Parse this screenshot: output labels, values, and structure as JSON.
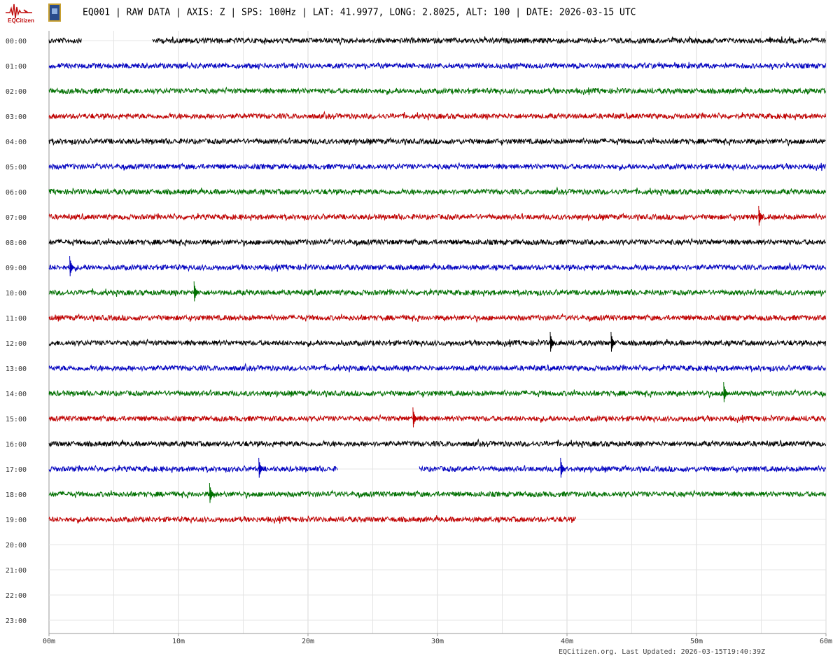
{
  "chart_data": {
    "type": "helicorder",
    "logo_text": "EQCitizen",
    "title": "EQ001 | RAW DATA | AXIS: Z | SPS: 100Hz | LAT: 41.9977, LONG: 2.8025, ALT: 100 | DATE: 2026-03-15 UTC",
    "footer": "EQCitizen.org. Last Updated: 2026-03-15T19:40:39Z",
    "xlim": [
      0,
      60
    ],
    "xticks": [
      {
        "value": 0,
        "label": "00m"
      },
      {
        "value": 10,
        "label": "10m"
      },
      {
        "value": 20,
        "label": "20m"
      },
      {
        "value": 30,
        "label": "30m"
      },
      {
        "value": 40,
        "label": "40m"
      },
      {
        "value": 50,
        "label": "50m"
      },
      {
        "value": 60,
        "label": "60m"
      }
    ],
    "xminor": [
      5,
      15,
      25,
      35,
      45,
      55
    ],
    "grid": true,
    "rows": [
      {
        "label": "00:00",
        "color": "#000000",
        "segments": [
          [
            0,
            2.5
          ],
          [
            8,
            60
          ]
        ],
        "events": []
      },
      {
        "label": "01:00",
        "color": "#0000c0",
        "segments": [
          [
            0,
            60
          ]
        ],
        "events": []
      },
      {
        "label": "02:00",
        "color": "#007000",
        "segments": [
          [
            0,
            60
          ]
        ],
        "events": []
      },
      {
        "label": "03:00",
        "color": "#c00000",
        "segments": [
          [
            0,
            60
          ]
        ],
        "events": []
      },
      {
        "label": "04:00",
        "color": "#000000",
        "segments": [
          [
            0,
            60
          ]
        ],
        "events": []
      },
      {
        "label": "05:00",
        "color": "#0000c0",
        "segments": [
          [
            0,
            60
          ]
        ],
        "events": []
      },
      {
        "label": "06:00",
        "color": "#007000",
        "segments": [
          [
            0,
            60
          ]
        ],
        "events": []
      },
      {
        "label": "07:00",
        "color": "#c00000",
        "segments": [
          [
            0,
            60
          ]
        ],
        "events": [
          54.8
        ]
      },
      {
        "label": "08:00",
        "color": "#000000",
        "segments": [
          [
            0,
            60
          ]
        ],
        "events": []
      },
      {
        "label": "09:00",
        "color": "#0000c0",
        "segments": [
          [
            0,
            60
          ]
        ],
        "events": [
          1.6
        ]
      },
      {
        "label": "10:00",
        "color": "#007000",
        "segments": [
          [
            0,
            60
          ]
        ],
        "events": [
          11.2
        ]
      },
      {
        "label": "11:00",
        "color": "#c00000",
        "segments": [
          [
            0,
            60
          ]
        ],
        "events": []
      },
      {
        "label": "12:00",
        "color": "#000000",
        "segments": [
          [
            0,
            60
          ]
        ],
        "events": [
          38.7,
          43.4
        ]
      },
      {
        "label": "13:00",
        "color": "#0000c0",
        "segments": [
          [
            0,
            60
          ]
        ],
        "events": []
      },
      {
        "label": "14:00",
        "color": "#007000",
        "segments": [
          [
            0,
            60
          ]
        ],
        "events": [
          52.1
        ]
      },
      {
        "label": "15:00",
        "color": "#c00000",
        "segments": [
          [
            0,
            60
          ]
        ],
        "events": [
          28.1
        ]
      },
      {
        "label": "16:00",
        "color": "#000000",
        "segments": [
          [
            0,
            60
          ]
        ],
        "events": []
      },
      {
        "label": "17:00",
        "color": "#0000c0",
        "segments": [
          [
            0,
            22.3
          ],
          [
            28.6,
            60
          ]
        ],
        "events": [
          16.2,
          39.5
        ]
      },
      {
        "label": "18:00",
        "color": "#007000",
        "segments": [
          [
            0,
            60
          ]
        ],
        "events": [
          12.4
        ]
      },
      {
        "label": "19:00",
        "color": "#c00000",
        "segments": [
          [
            0,
            40.7
          ]
        ],
        "events": []
      },
      {
        "label": "20:00",
        "color": "#000000",
        "segments": [],
        "events": []
      },
      {
        "label": "21:00",
        "color": "#0000c0",
        "segments": [],
        "events": []
      },
      {
        "label": "22:00",
        "color": "#007000",
        "segments": [],
        "events": []
      },
      {
        "label": "23:00",
        "color": "#c00000",
        "segments": [],
        "events": []
      }
    ]
  }
}
